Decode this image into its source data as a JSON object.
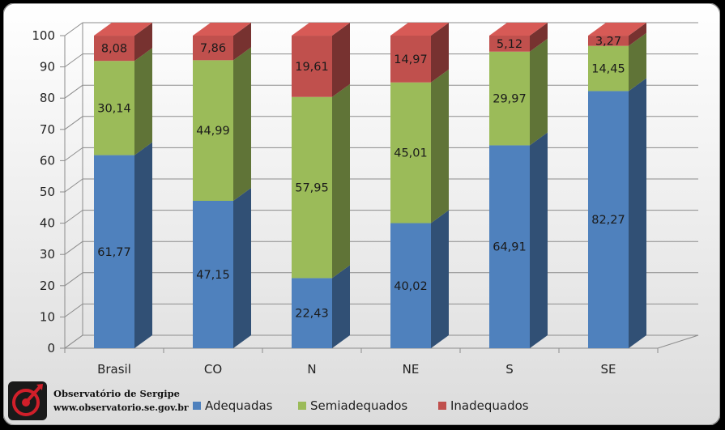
{
  "chart_data": {
    "type": "bar",
    "stacked": true,
    "three_d": true,
    "categories": [
      "Brasil",
      "CO",
      "N",
      "NE",
      "S",
      "SE"
    ],
    "series": [
      {
        "name": "Adequadas",
        "color": "#4F81BD",
        "values": [
          61.77,
          47.15,
          22.43,
          40.02,
          64.91,
          82.27
        ],
        "labels": [
          "61,77",
          "47,15",
          "22,43",
          "40,02",
          "64,91",
          "82,27"
        ]
      },
      {
        "name": "Semiadequados",
        "color": "#9BBB59",
        "values": [
          30.14,
          44.99,
          57.95,
          45.01,
          29.97,
          14.45
        ],
        "labels": [
          "30,14",
          "44,99",
          "57,95",
          "45,01",
          "29,97",
          "14,45"
        ]
      },
      {
        "name": "Inadequados",
        "color": "#C0504D",
        "values": [
          8.08,
          7.86,
          19.61,
          14.97,
          5.12,
          3.27
        ],
        "labels": [
          "8,08",
          "7,86",
          "19,61",
          "14,97",
          "5,12",
          "3,27"
        ]
      }
    ],
    "ylim": [
      0,
      100
    ],
    "yticks": [
      0,
      10,
      20,
      30,
      40,
      50,
      60,
      70,
      80,
      90,
      100
    ],
    "grid": true,
    "legend": "bottom"
  },
  "watermark": {
    "title": "Observatório de Sergipe",
    "url": "www.observatorio.se.gov.br",
    "logo_icon": "observatorio-logo-icon"
  }
}
